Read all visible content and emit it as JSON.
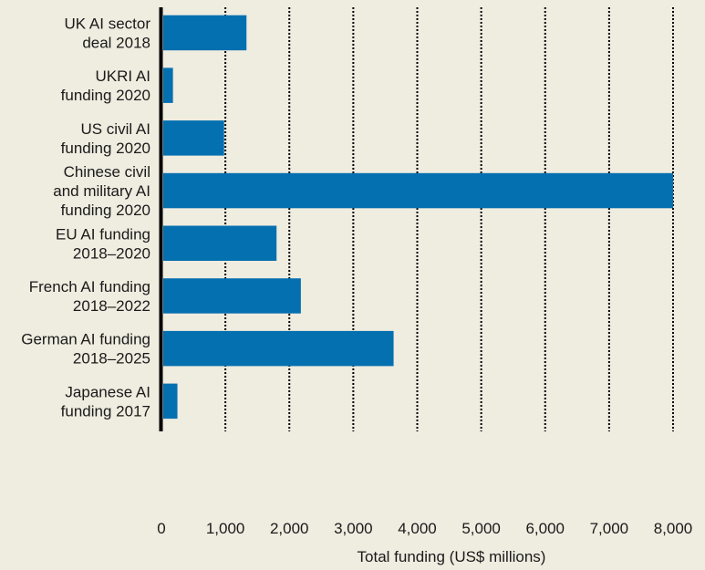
{
  "chart_data": {
    "type": "bar",
    "orientation": "horizontal",
    "title": "",
    "xlabel": "Total funding (US$ millions)",
    "ylabel": "",
    "xlim": [
      0,
      8000
    ],
    "xticks": [
      "0",
      "1,000",
      "2,000",
      "3,000",
      "4,000",
      "5,000",
      "6,000",
      "7,000",
      "8,000"
    ],
    "xtick_values": [
      0,
      1000,
      2000,
      3000,
      4000,
      5000,
      6000,
      7000,
      8000
    ],
    "grid": "vertical dotted",
    "categories": [
      [
        "UK AI sector",
        "deal 2018"
      ],
      [
        "UKRI AI",
        "funding 2020"
      ],
      [
        "US civil AI",
        "funding 2020"
      ],
      [
        "Chinese civil",
        "and military AI",
        "funding 2020"
      ],
      [
        "EU AI funding",
        "2018–2020"
      ],
      [
        "French AI funding",
        "2018–2022"
      ],
      [
        "German AI funding",
        "2018–2025"
      ],
      [
        "Japanese AI",
        "funding 2017"
      ]
    ],
    "values": [
      1330,
      180,
      980,
      8000,
      1800,
      2180,
      3630,
      250
    ],
    "bar_color": "#0570b0"
  }
}
